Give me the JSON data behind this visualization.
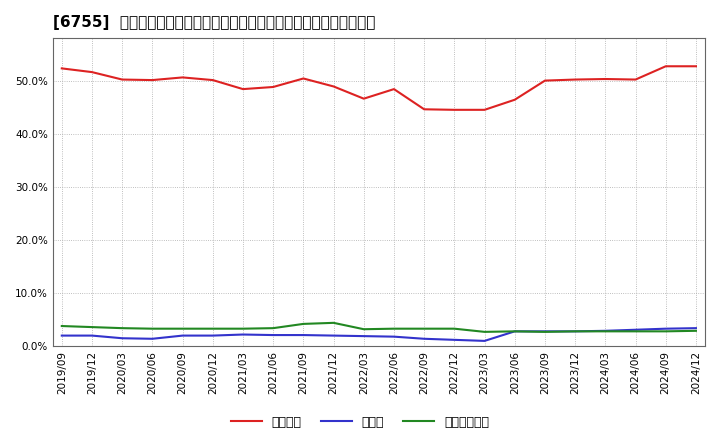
{
  "title": "[6755]  自己資本、のれん、繰延税金資産の総資産に対する比率の推移",
  "background_color": "#ffffff",
  "plot_bg_color": "#ffffff",
  "grid_color": "#aaaaaa",
  "ylim": [
    0.0,
    0.58
  ],
  "yticks": [
    0.0,
    0.1,
    0.2,
    0.3,
    0.4,
    0.5
  ],
  "x_labels": [
    "2019/09",
    "2019/12",
    "2020/03",
    "2020/06",
    "2020/09",
    "2020/12",
    "2021/03",
    "2021/06",
    "2021/09",
    "2021/12",
    "2022/03",
    "2022/06",
    "2022/09",
    "2022/12",
    "2023/03",
    "2023/06",
    "2023/09",
    "2023/12",
    "2024/03",
    "2024/06",
    "2024/09",
    "2024/12"
  ],
  "jiko_shihon": [
    0.523,
    0.516,
    0.502,
    0.501,
    0.506,
    0.501,
    0.484,
    0.488,
    0.504,
    0.489,
    0.466,
    0.484,
    0.446,
    0.445,
    0.445,
    0.464,
    0.5,
    0.502,
    0.503,
    0.502,
    0.527,
    0.527
  ],
  "noren": [
    0.02,
    0.02,
    0.015,
    0.014,
    0.02,
    0.02,
    0.022,
    0.021,
    0.021,
    0.02,
    0.019,
    0.018,
    0.014,
    0.012,
    0.01,
    0.028,
    0.028,
    0.028,
    0.029,
    0.031,
    0.033,
    0.034
  ],
  "kurinobe": [
    0.038,
    0.036,
    0.034,
    0.033,
    0.033,
    0.033,
    0.033,
    0.034,
    0.042,
    0.044,
    0.032,
    0.033,
    0.033,
    0.033,
    0.027,
    0.028,
    0.027,
    0.028,
    0.028,
    0.028,
    0.028,
    0.029
  ],
  "line_color_jiko": "#dd2222",
  "line_color_noren": "#3333cc",
  "line_color_kurinobe": "#228822",
  "line_width": 1.5,
  "legend_jiko": "自己資本",
  "legend_noren": "のれん",
  "legend_kurinobe": "繰延税金資産",
  "title_fontsize": 11,
  "tick_fontsize": 7.5,
  "legend_fontsize": 9
}
